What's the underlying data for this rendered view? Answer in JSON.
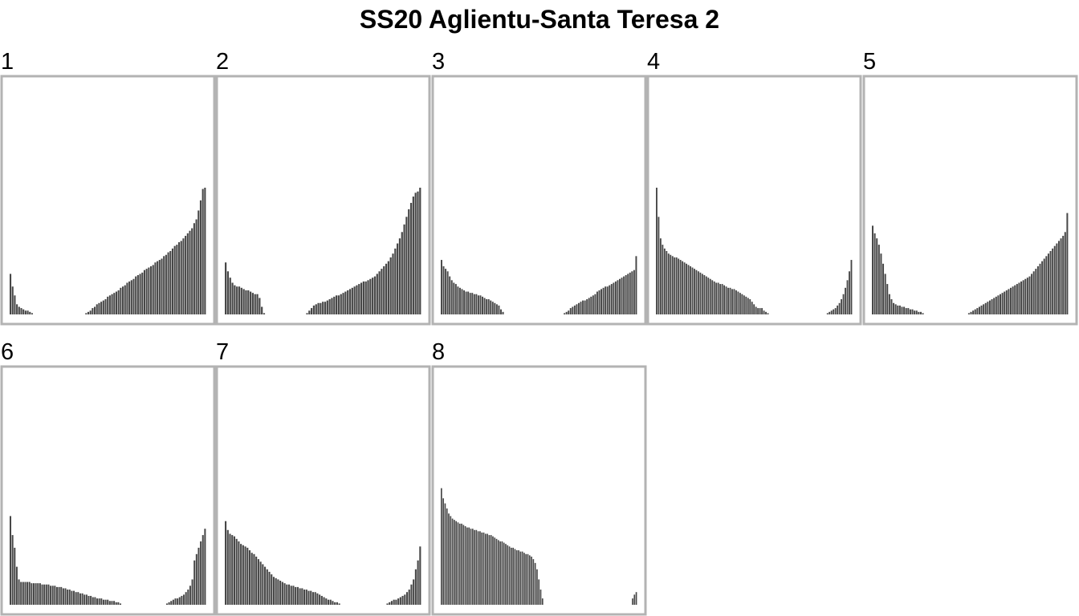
{
  "chart_data": {
    "type": "bar",
    "title": "SS20 Aglientu-Santa Teresa 2",
    "xlabel": "",
    "ylabel": "",
    "ylim": [
      0,
      100
    ],
    "grid": false,
    "colors": {
      "bar": "#474747",
      "panel_border": "#b3b3b3",
      "background": "#ffffff"
    },
    "panels": [
      {
        "label": "1",
        "values": [
          32,
          22,
          15,
          8,
          6,
          5,
          4,
          3,
          3,
          2,
          1,
          0,
          0,
          0,
          0,
          0,
          0,
          0,
          0,
          0,
          0,
          0,
          0,
          0,
          0,
          0,
          0,
          0,
          0,
          0,
          0,
          0,
          0,
          0,
          0,
          1,
          2,
          3,
          5,
          6,
          8,
          9,
          10,
          11,
          12,
          14,
          15,
          16,
          17,
          18,
          19,
          21,
          22,
          23,
          25,
          26,
          27,
          28,
          30,
          31,
          32,
          33,
          35,
          36,
          37,
          38,
          39,
          41,
          42,
          43,
          44,
          46,
          47,
          49,
          50,
          52,
          54,
          55,
          57,
          58,
          60,
          62,
          64,
          66,
          68,
          72,
          75,
          82,
          90,
          99,
          100
        ]
      },
      {
        "label": "2",
        "values": [
          41,
          34,
          29,
          25,
          23,
          22,
          22,
          21,
          20,
          19,
          19,
          18,
          17,
          16,
          16,
          13,
          6,
          1,
          0,
          0,
          0,
          0,
          0,
          0,
          0,
          0,
          0,
          0,
          0,
          0,
          0,
          0,
          0,
          0,
          0,
          0,
          1,
          3,
          5,
          7,
          8,
          9,
          9,
          10,
          10,
          11,
          12,
          13,
          14,
          15,
          15,
          16,
          17,
          18,
          19,
          20,
          21,
          22,
          23,
          24,
          25,
          26,
          26,
          27,
          28,
          29,
          30,
          32,
          34,
          36,
          38,
          40,
          42,
          45,
          48,
          52,
          56,
          60,
          65,
          71,
          77,
          83,
          88,
          93,
          96,
          97,
          100
        ]
      },
      {
        "label": "3",
        "values": [
          43,
          38,
          36,
          34,
          30,
          27,
          25,
          24,
          22,
          21,
          20,
          19,
          18,
          18,
          17,
          17,
          16,
          16,
          15,
          15,
          14,
          13,
          12,
          12,
          11,
          10,
          9,
          8,
          7,
          4,
          2,
          0,
          0,
          0,
          0,
          0,
          0,
          0,
          0,
          0,
          0,
          0,
          0,
          0,
          0,
          0,
          0,
          0,
          0,
          0,
          0,
          0,
          0,
          0,
          0,
          0,
          0,
          0,
          0,
          0,
          1,
          2,
          3,
          5,
          6,
          7,
          8,
          9,
          10,
          11,
          11,
          12,
          13,
          14,
          15,
          16,
          18,
          19,
          20,
          21,
          22,
          22,
          23,
          24,
          25,
          26,
          27,
          28,
          29,
          30,
          31,
          32,
          33,
          34,
          35,
          46
        ]
      },
      {
        "label": "4",
        "values": [
          100,
          77,
          60,
          55,
          52,
          50,
          48,
          47,
          46,
          45,
          45,
          44,
          43,
          42,
          41,
          40,
          39,
          38,
          37,
          36,
          35,
          34,
          33,
          32,
          31,
          30,
          29,
          28,
          27,
          26,
          25,
          25,
          24,
          24,
          23,
          22,
          21,
          21,
          20,
          20,
          19,
          18,
          17,
          16,
          15,
          14,
          13,
          12,
          10,
          8,
          6,
          5,
          5,
          5,
          3,
          2,
          1,
          0,
          0,
          0,
          0,
          0,
          0,
          0,
          0,
          0,
          0,
          0,
          0,
          0,
          0,
          0,
          0,
          0,
          0,
          0,
          0,
          0,
          0,
          0,
          0,
          0,
          0,
          0,
          0,
          0,
          1,
          2,
          3,
          4,
          5,
          7,
          9,
          12,
          16,
          21,
          27,
          34,
          43
        ]
      },
      {
        "label": "5",
        "values": [
          70,
          64,
          60,
          55,
          48,
          40,
          32,
          24,
          16,
          12,
          9,
          8,
          7,
          7,
          6,
          6,
          5,
          5,
          4,
          4,
          3,
          3,
          2,
          2,
          1,
          0,
          0,
          0,
          0,
          0,
          0,
          0,
          0,
          0,
          0,
          0,
          0,
          0,
          0,
          0,
          0,
          0,
          0,
          0,
          0,
          0,
          1,
          2,
          3,
          4,
          5,
          6,
          7,
          8,
          9,
          10,
          11,
          12,
          13,
          14,
          15,
          16,
          17,
          18,
          19,
          20,
          21,
          22,
          23,
          24,
          25,
          26,
          27,
          28,
          29,
          30,
          32,
          34,
          36,
          38,
          40,
          42,
          44,
          46,
          48,
          50,
          52,
          54,
          56,
          58,
          60,
          62,
          65,
          80
        ]
      },
      {
        "label": "6",
        "values": [
          70,
          55,
          45,
          30,
          20,
          18,
          18,
          18,
          18,
          18,
          17,
          17,
          17,
          17,
          17,
          16,
          16,
          16,
          16,
          15,
          15,
          15,
          14,
          14,
          14,
          13,
          13,
          12,
          12,
          11,
          11,
          10,
          10,
          9,
          9,
          8,
          8,
          7,
          7,
          6,
          6,
          5,
          5,
          5,
          4,
          4,
          4,
          3,
          3,
          3,
          2,
          2,
          1,
          0,
          0,
          0,
          0,
          0,
          0,
          0,
          0,
          0,
          0,
          0,
          0,
          0,
          0,
          0,
          0,
          0,
          0,
          0,
          0,
          0,
          1,
          2,
          3,
          4,
          5,
          5,
          6,
          7,
          8,
          10,
          12,
          15,
          20,
          35,
          40,
          45,
          50,
          55,
          60
        ]
      },
      {
        "label": "7",
        "values": [
          66,
          59,
          56,
          55,
          54,
          52,
          50,
          48,
          47,
          46,
          45,
          43,
          41,
          40,
          38,
          36,
          34,
          32,
          30,
          28,
          26,
          24,
          22,
          21,
          20,
          19,
          18,
          17,
          16,
          16,
          15,
          15,
          14,
          14,
          13,
          13,
          12,
          12,
          11,
          11,
          10,
          10,
          9,
          8,
          7,
          6,
          5,
          4,
          4,
          3,
          2,
          2,
          1,
          0,
          0,
          0,
          0,
          0,
          0,
          0,
          0,
          0,
          0,
          0,
          0,
          0,
          0,
          0,
          0,
          0,
          0,
          0,
          0,
          0,
          1,
          2,
          3,
          4,
          4,
          5,
          6,
          7,
          8,
          10,
          12,
          16,
          20,
          28,
          35,
          46
        ]
      },
      {
        "label": "8",
        "values": [
          92,
          84,
          80,
          76,
          72,
          70,
          68,
          67,
          66,
          65,
          64,
          64,
          63,
          62,
          61,
          61,
          60,
          60,
          59,
          59,
          58,
          58,
          57,
          57,
          56,
          56,
          55,
          55,
          54,
          53,
          52,
          51,
          50,
          50,
          49,
          48,
          47,
          46,
          45,
          45,
          44,
          43,
          43,
          42,
          42,
          41,
          40,
          40,
          39,
          38,
          36,
          33,
          28,
          20,
          12,
          5,
          0,
          0,
          0,
          0,
          0,
          0,
          0,
          0,
          0,
          0,
          0,
          0,
          0,
          0,
          0,
          0,
          0,
          0,
          0,
          0,
          0,
          0,
          0,
          0,
          0,
          0,
          0,
          0,
          0,
          0,
          0,
          0,
          0,
          0,
          0,
          0,
          0,
          0,
          0,
          0,
          0,
          0,
          0,
          0,
          0,
          0,
          0,
          0,
          5,
          8,
          10
        ]
      }
    ]
  }
}
